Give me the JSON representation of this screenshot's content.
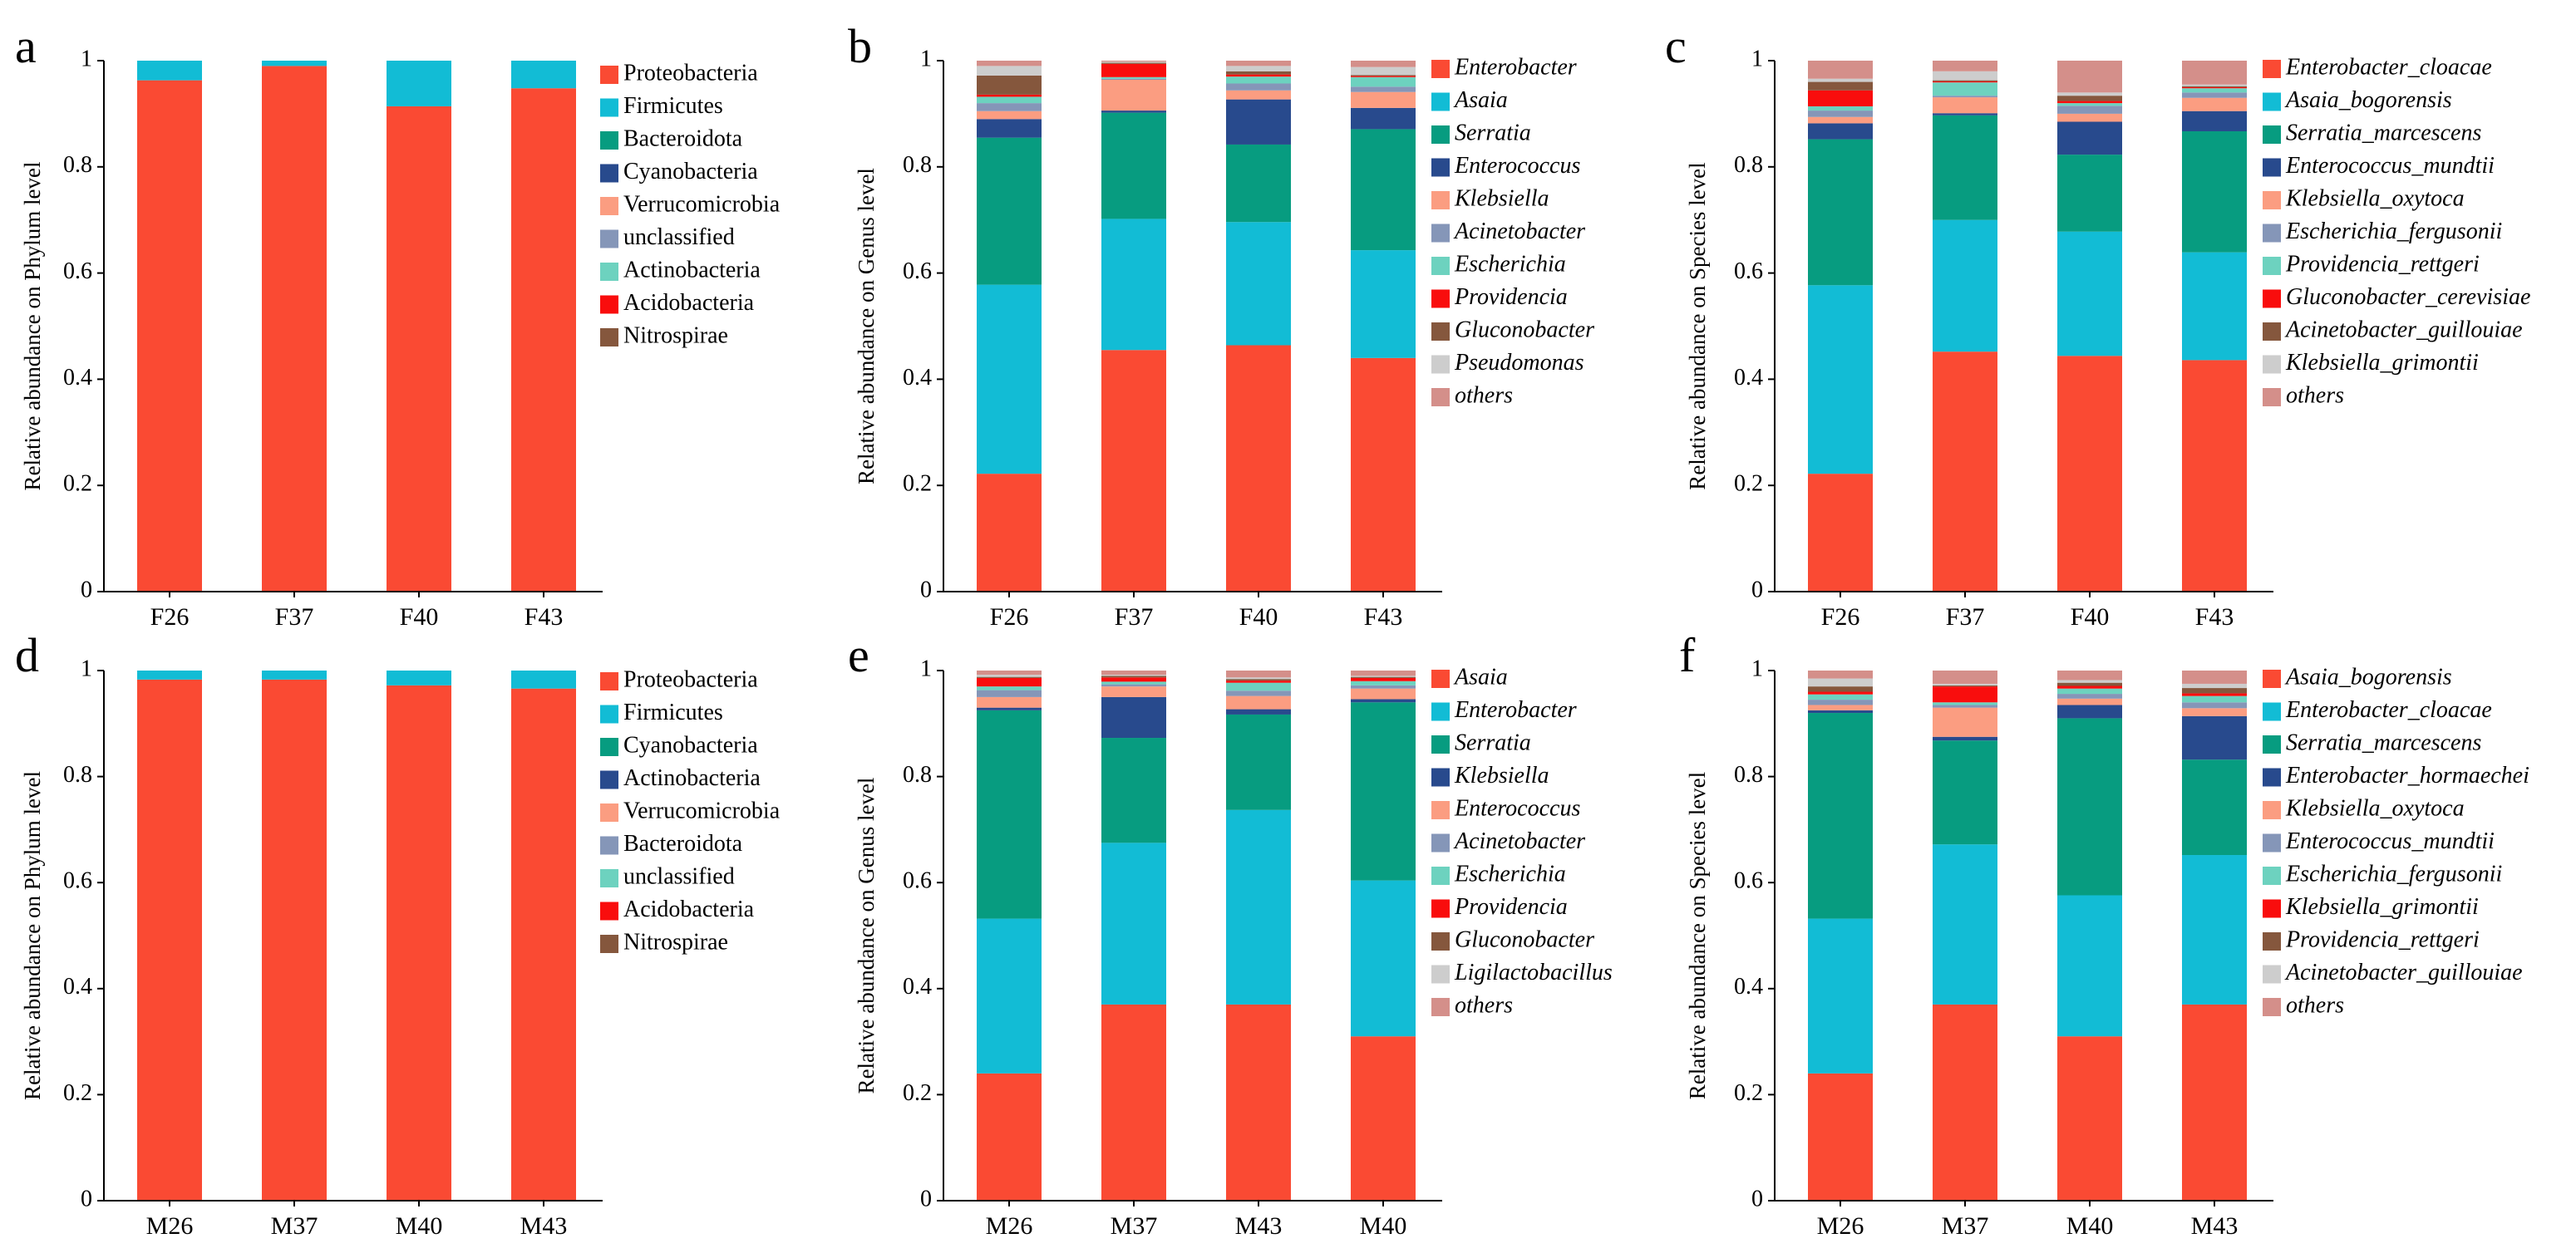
{
  "colors": {
    "red": "#fa4a33",
    "cyan": "#12bcd5",
    "teal": "#079c80",
    "navy": "#284a8d",
    "salmon": "#fb9d81",
    "slate": "#8596b8",
    "mint": "#6dd2bf",
    "brightred": "#f90d0d",
    "brown": "#85573d",
    "lightgray": "#cdcdcd",
    "rose": "#d48f8a"
  },
  "chart_data": [
    {
      "panel_letter": "a",
      "type": "bar",
      "stacked": true,
      "ylabel": "Relative abundance on Phylum level",
      "ylim": [
        0,
        1
      ],
      "yticks": [
        "0",
        "0.2",
        "0.4",
        "0.6",
        "0.8",
        "1"
      ],
      "categories": [
        "F26",
        "F37",
        "F40",
        "F43"
      ],
      "italic_legend": false,
      "series": [
        {
          "name": "Proteobacteria",
          "color": "#fa4a33",
          "values": [
            0.963,
            0.99,
            0.914,
            0.948
          ]
        },
        {
          "name": "Firmicutes",
          "color": "#12bcd5",
          "values": [
            0.037,
            0.01,
            0.086,
            0.052
          ]
        },
        {
          "name": "Bacteroidota",
          "color": "#079c80",
          "values": [
            0,
            0,
            0,
            0
          ]
        },
        {
          "name": "Cyanobacteria",
          "color": "#284a8d",
          "values": [
            0,
            0,
            0,
            0
          ]
        },
        {
          "name": "Verrucomicrobia",
          "color": "#fb9d81",
          "values": [
            0,
            0,
            0,
            0
          ]
        },
        {
          "name": "unclassified",
          "color": "#8596b8",
          "values": [
            0,
            0,
            0,
            0
          ]
        },
        {
          "name": "Actinobacteria",
          "color": "#6dd2bf",
          "values": [
            0,
            0,
            0,
            0
          ]
        },
        {
          "name": "Acidobacteria",
          "color": "#f90d0d",
          "values": [
            0,
            0,
            0,
            0
          ]
        },
        {
          "name": "Nitrospirae",
          "color": "#85573d",
          "values": [
            0,
            0,
            0,
            0
          ]
        }
      ]
    },
    {
      "panel_letter": "b",
      "type": "bar",
      "stacked": true,
      "ylabel": "Relative abundance on Genus level",
      "ylim": [
        0,
        1
      ],
      "yticks": [
        "0",
        "0.2",
        "0.4",
        "0.6",
        "0.8",
        "1"
      ],
      "categories": [
        "F26",
        "F37",
        "F40",
        "F43"
      ],
      "italic_legend": true,
      "series": [
        {
          "name": "Enterobacter",
          "color": "#fa4a33",
          "values": [
            0.222,
            0.455,
            0.464,
            0.44
          ]
        },
        {
          "name": "Asaia",
          "color": "#12bcd5",
          "values": [
            0.356,
            0.247,
            0.232,
            0.203
          ]
        },
        {
          "name": "Serratia",
          "color": "#079c80",
          "values": [
            0.277,
            0.2,
            0.146,
            0.228
          ]
        },
        {
          "name": "Enterococcus",
          "color": "#284a8d",
          "values": [
            0.035,
            0.004,
            0.085,
            0.04
          ]
        },
        {
          "name": "Klebsiella",
          "color": "#fb9d81",
          "values": [
            0.015,
            0.058,
            0.017,
            0.03
          ]
        },
        {
          "name": "Acinetobacter",
          "color": "#8596b8",
          "values": [
            0.015,
            0.002,
            0.013,
            0.01
          ]
        },
        {
          "name": "Escherichia",
          "color": "#6dd2bf",
          "values": [
            0.012,
            0.003,
            0.013,
            0.018
          ]
        },
        {
          "name": "Providencia",
          "color": "#f90d0d",
          "values": [
            0.004,
            0.025,
            0.004,
            0.002
          ]
        },
        {
          "name": "Gluconobacter",
          "color": "#85573d",
          "values": [
            0.036,
            0.002,
            0.006,
            0.002
          ]
        },
        {
          "name": "Pseudomonas",
          "color": "#cdcdcd",
          "values": [
            0.018,
            0.002,
            0.01,
            0.015
          ]
        },
        {
          "name": "others",
          "color": "#d48f8a",
          "values": [
            0.01,
            0.002,
            0.01,
            0.012
          ]
        }
      ]
    },
    {
      "panel_letter": "c",
      "type": "bar",
      "stacked": true,
      "ylabel": "Relative abundance on Species level",
      "ylim": [
        0,
        1
      ],
      "yticks": [
        "0",
        "0.2",
        "0.4",
        "0.6",
        "0.8",
        "1"
      ],
      "categories": [
        "F26",
        "F37",
        "F40",
        "F43"
      ],
      "italic_legend": true,
      "series": [
        {
          "name": "Enterobacter_cloacae",
          "color": "#fa4a33",
          "values": [
            0.222,
            0.452,
            0.444,
            0.436
          ]
        },
        {
          "name": "Asaia_bogorensis",
          "color": "#12bcd5",
          "values": [
            0.355,
            0.248,
            0.234,
            0.203
          ]
        },
        {
          "name": "Serratia_marcescens",
          "color": "#079c80",
          "values": [
            0.275,
            0.197,
            0.145,
            0.228
          ]
        },
        {
          "name": "Enterococcus_mundtii",
          "color": "#284a8d",
          "values": [
            0.03,
            0.004,
            0.062,
            0.038
          ]
        },
        {
          "name": "Klebsiella_oxytoca",
          "color": "#fb9d81",
          "values": [
            0.012,
            0.03,
            0.015,
            0.025
          ]
        },
        {
          "name": "Escherichia_fergusonii",
          "color": "#8596b8",
          "values": [
            0.012,
            0.003,
            0.015,
            0.01
          ]
        },
        {
          "name": "Providencia_rettgeri",
          "color": "#6dd2bf",
          "values": [
            0.008,
            0.025,
            0.005,
            0.008
          ]
        },
        {
          "name": "Gluconobacter_cerevisiae",
          "color": "#f90d0d",
          "values": [
            0.03,
            0.002,
            0.004,
            0.002
          ]
        },
        {
          "name": "Acinetobacter_guillouiae",
          "color": "#85573d",
          "values": [
            0.016,
            0.002,
            0.01,
            0.002
          ]
        },
        {
          "name": "Klebsiella_grimontii",
          "color": "#cdcdcd",
          "values": [
            0.006,
            0.017,
            0.006,
            0.003
          ]
        },
        {
          "name": "others",
          "color": "#d48f8a",
          "values": [
            0.034,
            0.02,
            0.06,
            0.045
          ]
        }
      ]
    },
    {
      "panel_letter": "d",
      "type": "bar",
      "stacked": true,
      "ylabel": "Relative abundance on Phylum level",
      "ylim": [
        0,
        1
      ],
      "yticks": [
        "0",
        "0.2",
        "0.4",
        "0.6",
        "0.8",
        "1"
      ],
      "categories": [
        "M26",
        "M37",
        "M40",
        "M43"
      ],
      "italic_legend": false,
      "series": [
        {
          "name": "Proteobacteria",
          "color": "#fa4a33",
          "values": [
            0.983,
            0.983,
            0.972,
            0.966
          ]
        },
        {
          "name": "Firmicutes",
          "color": "#12bcd5",
          "values": [
            0.017,
            0.017,
            0.028,
            0.034
          ]
        },
        {
          "name": "Cyanobacteria",
          "color": "#079c80",
          "values": [
            0,
            0,
            0,
            0
          ]
        },
        {
          "name": "Actinobacteria",
          "color": "#284a8d",
          "values": [
            0,
            0,
            0,
            0
          ]
        },
        {
          "name": "Verrucomicrobia",
          "color": "#fb9d81",
          "values": [
            0,
            0,
            0,
            0
          ]
        },
        {
          "name": "Bacteroidota",
          "color": "#8596b8",
          "values": [
            0,
            0,
            0,
            0
          ]
        },
        {
          "name": "unclassified",
          "color": "#6dd2bf",
          "values": [
            0,
            0,
            0,
            0
          ]
        },
        {
          "name": "Acidobacteria",
          "color": "#f90d0d",
          "values": [
            0,
            0,
            0,
            0
          ]
        },
        {
          "name": "Nitrospirae",
          "color": "#85573d",
          "values": [
            0,
            0,
            0,
            0
          ]
        }
      ]
    },
    {
      "panel_letter": "e",
      "type": "bar",
      "stacked": true,
      "ylabel": "Relative abundance on Genus level",
      "ylim": [
        0,
        1
      ],
      "yticks": [
        "0",
        "0.2",
        "0.4",
        "0.6",
        "0.8",
        "1"
      ],
      "categories": [
        "M26",
        "M37",
        "M43",
        "M40"
      ],
      "italic_legend": true,
      "series": [
        {
          "name": "Asaia",
          "color": "#fa4a33",
          "values": [
            0.24,
            0.37,
            0.37,
            0.31
          ]
        },
        {
          "name": "Enterobacter",
          "color": "#12bcd5",
          "values": [
            0.292,
            0.305,
            0.367,
            0.294
          ]
        },
        {
          "name": "Serratia",
          "color": "#079c80",
          "values": [
            0.393,
            0.198,
            0.18,
            0.336
          ]
        },
        {
          "name": "Klebsiella",
          "color": "#284a8d",
          "values": [
            0.005,
            0.077,
            0.01,
            0.006
          ]
        },
        {
          "name": "Enterococcus",
          "color": "#fb9d81",
          "values": [
            0.02,
            0.02,
            0.025,
            0.02
          ]
        },
        {
          "name": "Acinetobacter",
          "color": "#8596b8",
          "values": [
            0.013,
            0.004,
            0.01,
            0.006
          ]
        },
        {
          "name": "Escherichia",
          "color": "#6dd2bf",
          "values": [
            0.007,
            0.005,
            0.015,
            0.008
          ]
        },
        {
          "name": "Providencia",
          "color": "#f90d0d",
          "values": [
            0.016,
            0.008,
            0.004,
            0.006
          ]
        },
        {
          "name": "Gluconobacter",
          "color": "#85573d",
          "values": [
            0.002,
            0.003,
            0.003,
            0.002
          ]
        },
        {
          "name": "Ligilactobacillus",
          "color": "#cdcdcd",
          "values": [
            0.004,
            0.002,
            0.003,
            0.002
          ]
        },
        {
          "name": "others",
          "color": "#d48f8a",
          "values": [
            0.008,
            0.008,
            0.013,
            0.01
          ]
        }
      ]
    },
    {
      "panel_letter": "f",
      "type": "bar",
      "stacked": true,
      "ylabel": "Relative abundance on Species level",
      "ylim": [
        0,
        1
      ],
      "yticks": [
        "0",
        "0.2",
        "0.4",
        "0.6",
        "0.8",
        "1"
      ],
      "categories": [
        "M26",
        "M37",
        "M40",
        "M43"
      ],
      "italic_legend": true,
      "series": [
        {
          "name": "Asaia_bogorensis",
          "color": "#fa4a33",
          "values": [
            0.24,
            0.37,
            0.31,
            0.37
          ]
        },
        {
          "name": "Enterobacter_cloacae",
          "color": "#12bcd5",
          "values": [
            0.292,
            0.302,
            0.266,
            0.282
          ]
        },
        {
          "name": "Serratia_marcescens",
          "color": "#079c80",
          "values": [
            0.388,
            0.196,
            0.334,
            0.18
          ]
        },
        {
          "name": "Enterobacter_hormaechei",
          "color": "#284a8d",
          "values": [
            0.005,
            0.007,
            0.025,
            0.082
          ]
        },
        {
          "name": "Klebsiella_oxytoca",
          "color": "#fb9d81",
          "values": [
            0.01,
            0.055,
            0.012,
            0.015
          ]
        },
        {
          "name": "Enterococcus_mundtii",
          "color": "#8596b8",
          "values": [
            0.01,
            0.005,
            0.009,
            0.011
          ]
        },
        {
          "name": "Escherichia_fergusonii",
          "color": "#6dd2bf",
          "values": [
            0.01,
            0.005,
            0.01,
            0.012
          ]
        },
        {
          "name": "Klebsiella_grimontii",
          "color": "#f90d0d",
          "values": [
            0.005,
            0.03,
            0.005,
            0.005
          ]
        },
        {
          "name": "Providencia_rettgeri",
          "color": "#85573d",
          "values": [
            0.01,
            0.002,
            0.006,
            0.01
          ]
        },
        {
          "name": "Acinetobacter_guillouiae",
          "color": "#cdcdcd",
          "values": [
            0.015,
            0.003,
            0.005,
            0.008
          ]
        },
        {
          "name": "others",
          "color": "#d48f8a",
          "values": [
            0.015,
            0.025,
            0.018,
            0.025
          ]
        }
      ]
    }
  ]
}
